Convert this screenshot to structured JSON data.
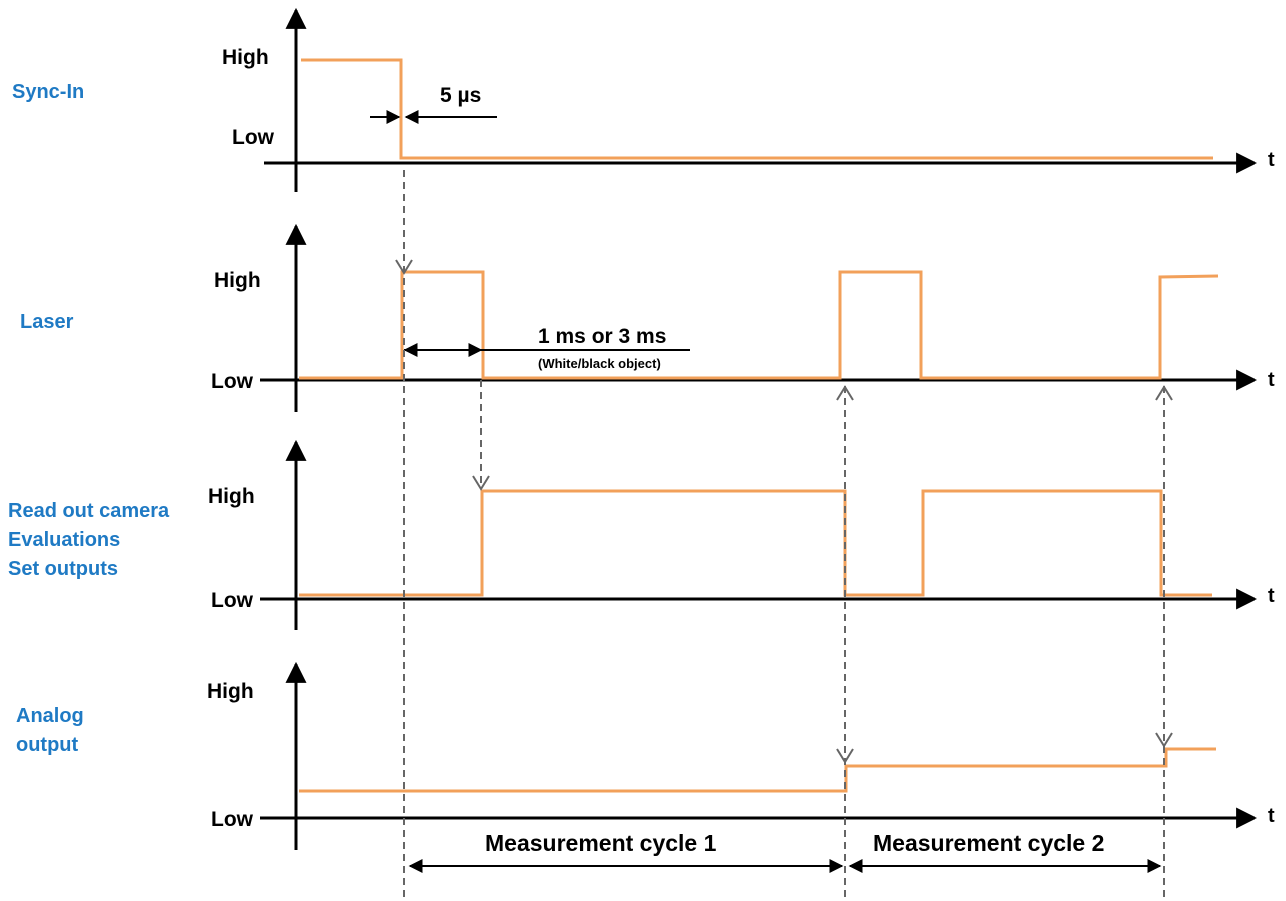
{
  "signals": [
    {
      "label_lines": [
        "Sync-In"
      ]
    },
    {
      "label_lines": [
        "Laser"
      ]
    },
    {
      "label_lines": [
        "Read out camera",
        "Evaluations",
        "Set outputs"
      ]
    },
    {
      "label_lines": [
        "Analog",
        "output"
      ]
    }
  ],
  "levels": {
    "high": "High",
    "low": "Low"
  },
  "time_axis_label": "t",
  "annotations": {
    "delay": "5 µs",
    "exposure": "1 ms or 3 ms",
    "exposure_note": "(White/black object)"
  },
  "cycles": [
    "Measurement cycle 1",
    "Measurement cycle 2"
  ],
  "colors": {
    "signal_label": "#1F7AC4",
    "waveform": "#F2A05A",
    "guide": "#666666",
    "axis": "#000000"
  }
}
